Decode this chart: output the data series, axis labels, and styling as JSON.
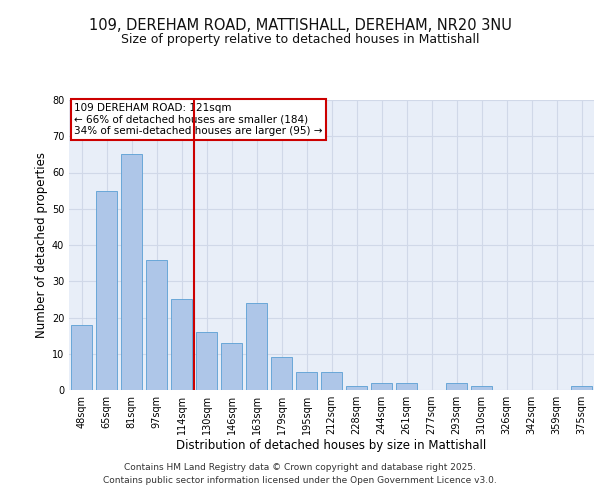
{
  "title_line1": "109, DEREHAM ROAD, MATTISHALL, DEREHAM, NR20 3NU",
  "title_line2": "Size of property relative to detached houses in Mattishall",
  "xlabel": "Distribution of detached houses by size in Mattishall",
  "ylabel": "Number of detached properties",
  "categories": [
    "48sqm",
    "65sqm",
    "81sqm",
    "97sqm",
    "114sqm",
    "130sqm",
    "146sqm",
    "163sqm",
    "179sqm",
    "195sqm",
    "212sqm",
    "228sqm",
    "244sqm",
    "261sqm",
    "277sqm",
    "293sqm",
    "310sqm",
    "326sqm",
    "342sqm",
    "359sqm",
    "375sqm"
  ],
  "values": [
    18,
    55,
    65,
    36,
    25,
    16,
    13,
    24,
    9,
    5,
    5,
    1,
    2,
    2,
    0,
    2,
    1,
    0,
    0,
    0,
    1
  ],
  "bar_color": "#aec6e8",
  "bar_edgecolor": "#5a9fd4",
  "reference_line_x": 4.5,
  "reference_line_color": "#cc0000",
  "annotation_text": "109 DEREHAM ROAD: 121sqm\n← 66% of detached houses are smaller (184)\n34% of semi-detached houses are larger (95) →",
  "annotation_box_color": "#ffffff",
  "annotation_box_edgecolor": "#cc0000",
  "ylim": [
    0,
    80
  ],
  "yticks": [
    0,
    10,
    20,
    30,
    40,
    50,
    60,
    70,
    80
  ],
  "grid_color": "#d0d8e8",
  "background_color": "#e8eef8",
  "footer_line1": "Contains HM Land Registry data © Crown copyright and database right 2025.",
  "footer_line2": "Contains public sector information licensed under the Open Government Licence v3.0.",
  "title_fontsize": 10.5,
  "subtitle_fontsize": 9,
  "axis_label_fontsize": 8.5,
  "tick_fontsize": 7,
  "annotation_fontsize": 7.5,
  "footer_fontsize": 6.5
}
